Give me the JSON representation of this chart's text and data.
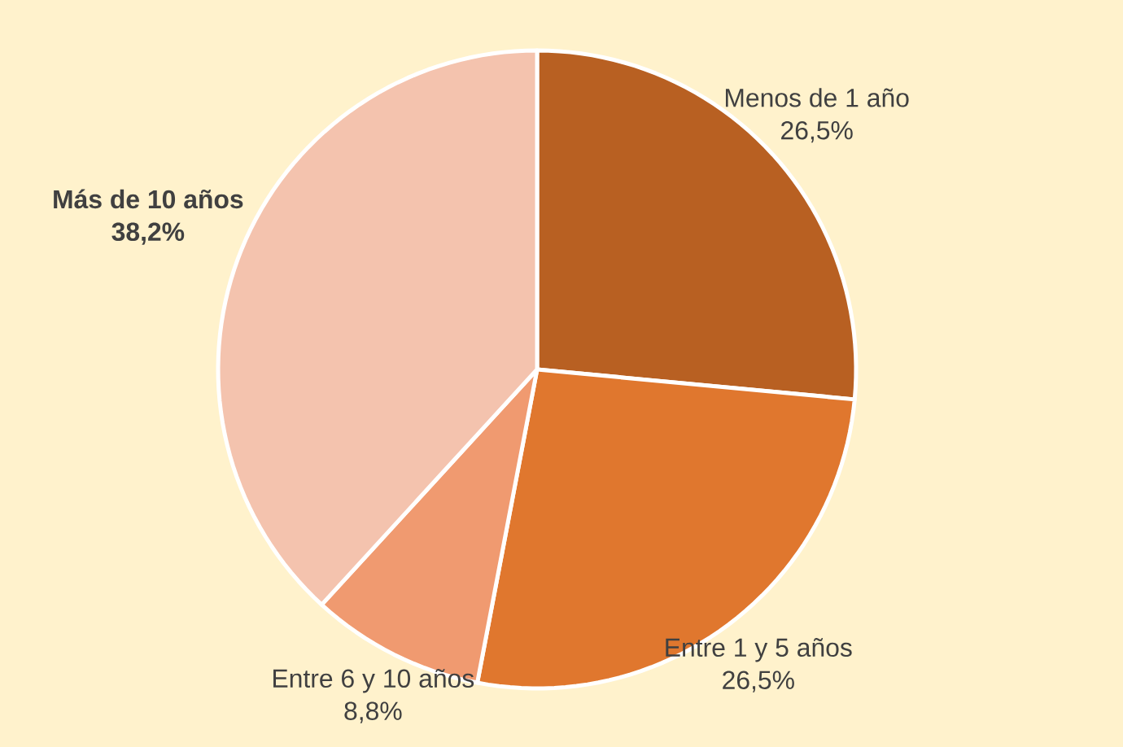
{
  "chart_data": {
    "type": "pie",
    "categories": [
      "Menos de 1 año",
      "Entre 1 y 5 años",
      "Entre 6 y 10 años",
      "**Más de 10 años**"
    ],
    "values": [
      26.5,
      26.5,
      8.8,
      38.2
    ],
    "colors": [
      "#b86022",
      "#e0772e",
      "#f09a70",
      "#f4c3ae"
    ],
    "value_labels": [
      "26,5%",
      "26,5%",
      "8,8%",
      "**38,2%**"
    ]
  }
}
